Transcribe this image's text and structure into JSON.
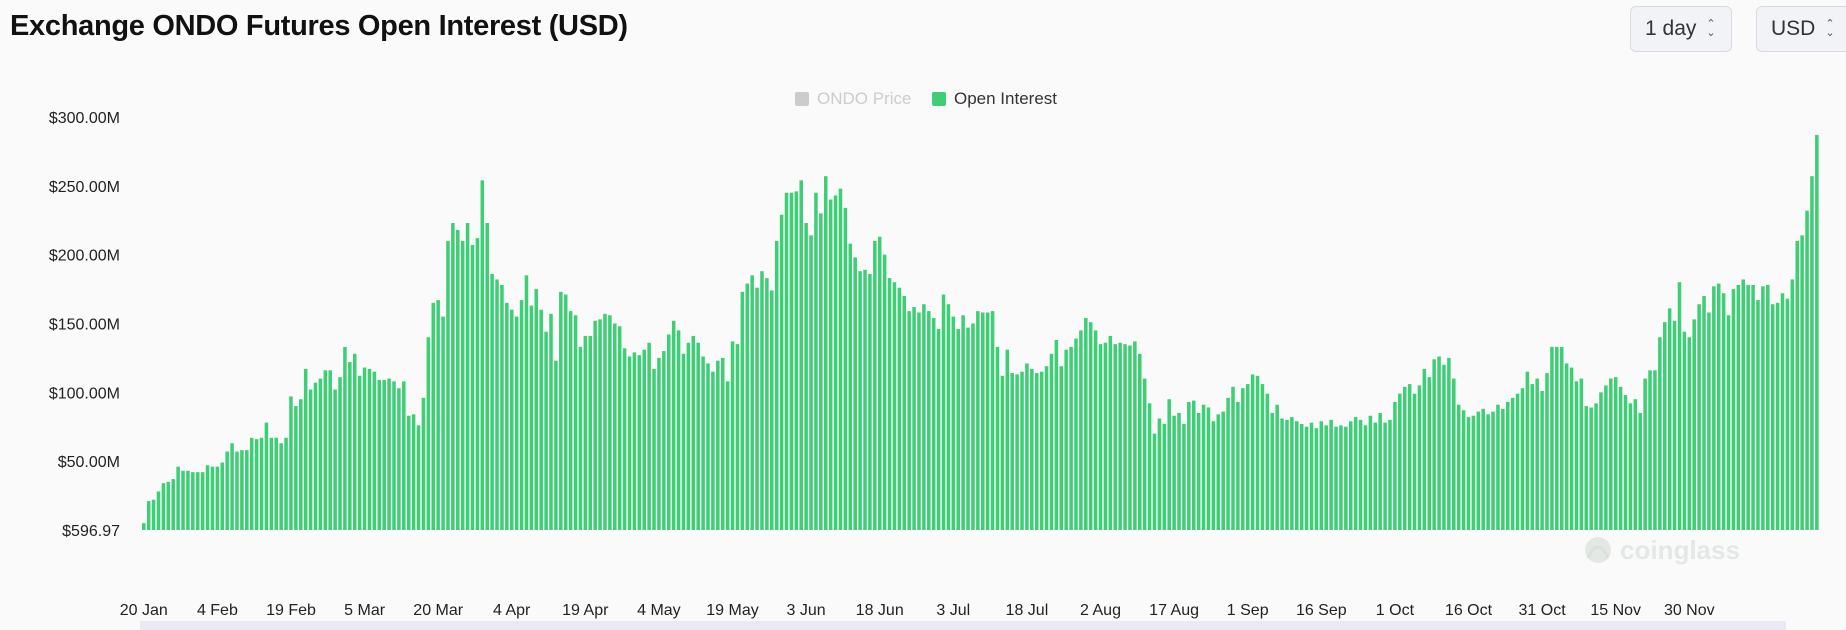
{
  "header": {
    "title": "Exchange ONDO Futures Open Interest (USD)",
    "interval_select": "1 day",
    "currency_select": "USD"
  },
  "watermark": "coinglass",
  "colors": {
    "bar": "#3ecf76",
    "price_legend_disabled": "#cccccc",
    "axis_text": "#222222"
  },
  "chart_data": {
    "type": "bar",
    "legend": [
      {
        "name": "ONDO Price",
        "visible": false
      },
      {
        "name": "Open Interest",
        "visible": true
      }
    ],
    "legend_position": "top-center",
    "y_tick_labels": [
      "$596.97",
      "$50.00M",
      "$100.00M",
      "$150.00M",
      "$200.00M",
      "$250.00M",
      "$300.00M"
    ],
    "ylim": [
      0,
      300
    ],
    "y_unit": "M USD",
    "x_tick_labels": [
      "20 Jan",
      "4 Feb",
      "19 Feb",
      "5 Mar",
      "20 Mar",
      "4 Apr",
      "19 Apr",
      "4 May",
      "19 May",
      "3 Jun",
      "18 Jun",
      "3 Jul",
      "18 Jul",
      "2 Aug",
      "17 Aug",
      "1 Sep",
      "16 Sep",
      "1 Oct",
      "16 Oct",
      "31 Oct",
      "15 Nov",
      "30 Nov"
    ],
    "x_start": "2024-01-20",
    "x_end": "2024-12-03",
    "grid": false,
    "series": [
      {
        "name": "Open Interest",
        "values": [
          5,
          21,
          22,
          28,
          34,
          35,
          37,
          46,
          43,
          43,
          42,
          42,
          42,
          47,
          46,
          46,
          49,
          57,
          63,
          57,
          58,
          58,
          67,
          66,
          67,
          78,
          67,
          67,
          63,
          67,
          97,
          90,
          95,
          117,
          102,
          107,
          110,
          116,
          116,
          102,
          111,
          133,
          122,
          128,
          112,
          118,
          117,
          115,
          109,
          109,
          110,
          108,
          103,
          108,
          83,
          84,
          76,
          96,
          140,
          165,
          167,
          155,
          210,
          223,
          218,
          210,
          223,
          207,
          212,
          254,
          223,
          186,
          182,
          178,
          165,
          160,
          155,
          167,
          185,
          163,
          175,
          160,
          144,
          157,
          123,
          173,
          171,
          159,
          156,
          133,
          141,
          141,
          152,
          153,
          157,
          156,
          150,
          148,
          132,
          126,
          129,
          127,
          131,
          136,
          117,
          125,
          130,
          142,
          152,
          145,
          128,
          136,
          141,
          136,
          126,
          121,
          115,
          123,
          125,
          108,
          137,
          135,
          173,
          179,
          185,
          176,
          188,
          183,
          174,
          210,
          229,
          245,
          245,
          246,
          254,
          223,
          214,
          245,
          230,
          257,
          240,
          243,
          248,
          234,
          208,
          198,
          188,
          189,
          186,
          210,
          213,
          200,
          183,
          180,
          176,
          170,
          159,
          162,
          158,
          164,
          159,
          154,
          146,
          171,
          164,
          155,
          146,
          156,
          147,
          150,
          159,
          158,
          158,
          159,
          133,
          112,
          131,
          114,
          113,
          115,
          121,
          117,
          114,
          115,
          119,
          128,
          138,
          119,
          131,
          133,
          139,
          145,
          154,
          151,
          145,
          135,
          136,
          141,
          135,
          136,
          135,
          134,
          137,
          128,
          110,
          92,
          70,
          81,
          77,
          95,
          83,
          85,
          77,
          93,
          94,
          85,
          91,
          89,
          79,
          84,
          86,
          96,
          104,
          93,
          103,
          106,
          113,
          112,
          106,
          99,
          85,
          91,
          81,
          80,
          82,
          79,
          77,
          75,
          78,
          74,
          79,
          76,
          80,
          75,
          76,
          75,
          79,
          82,
          80,
          76,
          83,
          78,
          85,
          78,
          80,
          93,
          99,
          104,
          106,
          99,
          105,
          117,
          111,
          124,
          126,
          120,
          125,
          110,
          91,
          87,
          82,
          83,
          86,
          88,
          84,
          86,
          91,
          88,
          93,
          96,
          99,
          103,
          115,
          106,
          110,
          101,
          114,
          133,
          133,
          133,
          121,
          118,
          108,
          110,
          90,
          89,
          92,
          100,
          105,
          110,
          111,
          104,
          98,
          92,
          95,
          85,
          110,
          116,
          116,
          140,
          151,
          161,
          152,
          180,
          144,
          140,
          153,
          164,
          170,
          158,
          177,
          179,
          172,
          156,
          175,
          178,
          182,
          178,
          178,
          167,
          177,
          178,
          164,
          165,
          172,
          168,
          182,
          210,
          214,
          232,
          257,
          287
        ]
      }
    ]
  }
}
